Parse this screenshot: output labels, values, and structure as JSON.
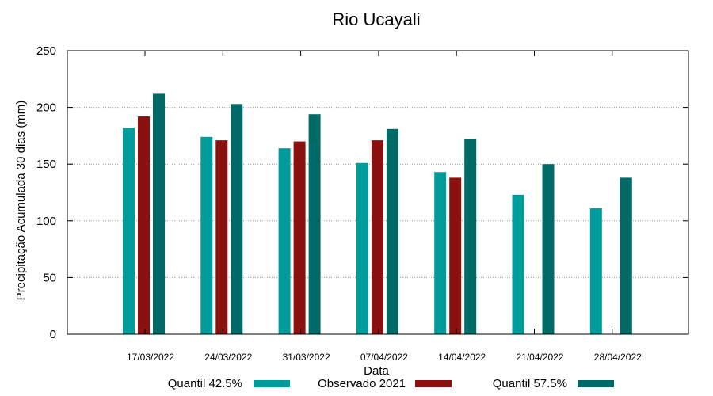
{
  "chart_data": {
    "type": "bar",
    "title": "Rio Ucayali",
    "xlabel": "Data",
    "ylabel": "Precipitação Acumulada 30 dias (mm)",
    "ylim": [
      0,
      250
    ],
    "yticks": [
      0,
      50,
      100,
      150,
      200,
      250
    ],
    "grid": true,
    "legend_position": "bottom",
    "categories": [
      "17/03/2022",
      "24/03/2022",
      "31/03/2022",
      "07/04/2022",
      "14/04/2022",
      "21/04/2022",
      "28/04/2022"
    ],
    "series": [
      {
        "name": "Quantil 42.5%",
        "color": "#009b9b",
        "values": [
          182,
          174,
          164,
          151,
          143,
          123,
          111
        ]
      },
      {
        "name": "Observado 2021",
        "color": "#8b1010",
        "values": [
          192,
          171,
          170,
          171,
          138,
          null,
          null
        ]
      },
      {
        "name": "Quantil 57.5%",
        "color": "#006b66",
        "values": [
          212,
          203,
          194,
          181,
          172,
          150,
          138
        ]
      }
    ]
  }
}
